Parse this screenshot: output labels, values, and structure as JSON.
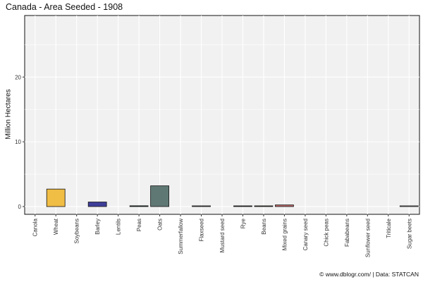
{
  "chart_data": {
    "type": "bar",
    "title": "Canada - Area Seeded - 1908",
    "xlabel": "",
    "ylabel": "Million Hectares",
    "ylim": [
      -1.2,
      29.5
    ],
    "yticks": [
      0,
      10,
      20
    ],
    "grid": true,
    "legend": "none",
    "categories": [
      "Canola",
      "Wheat",
      "Soybeans",
      "Barley",
      "Lentils",
      "Peas",
      "Oats",
      "Summerfallow",
      "Flaxseed",
      "Mustard seed",
      "Rye",
      "Beans",
      "Mixed grains",
      "Canary seed",
      "Chick peas",
      "Fababeans",
      "Sunflower seed",
      "Triticale",
      "Sugar beets"
    ],
    "values": [
      0,
      2.7,
      0,
      0.7,
      0,
      0.12,
      3.2,
      0,
      0.06,
      0,
      0.04,
      0.02,
      0.25,
      0,
      0,
      0,
      0,
      0,
      0.01
    ],
    "colors": [
      "#999999",
      "#f0bd45",
      "#999999",
      "#3f3f9a",
      "#999999",
      "#1c3d28",
      "#5f7873",
      "#999999",
      "#8b8b8b",
      "#999999",
      "#5a4a6a",
      "#6b5b3b",
      "#c26a6a",
      "#999999",
      "#999999",
      "#999999",
      "#999999",
      "#999999",
      "#dddddd"
    ]
  },
  "caption": {
    "site": "© www.dblogr.com/",
    "separator": " | ",
    "source": "Data: STATCAN"
  }
}
